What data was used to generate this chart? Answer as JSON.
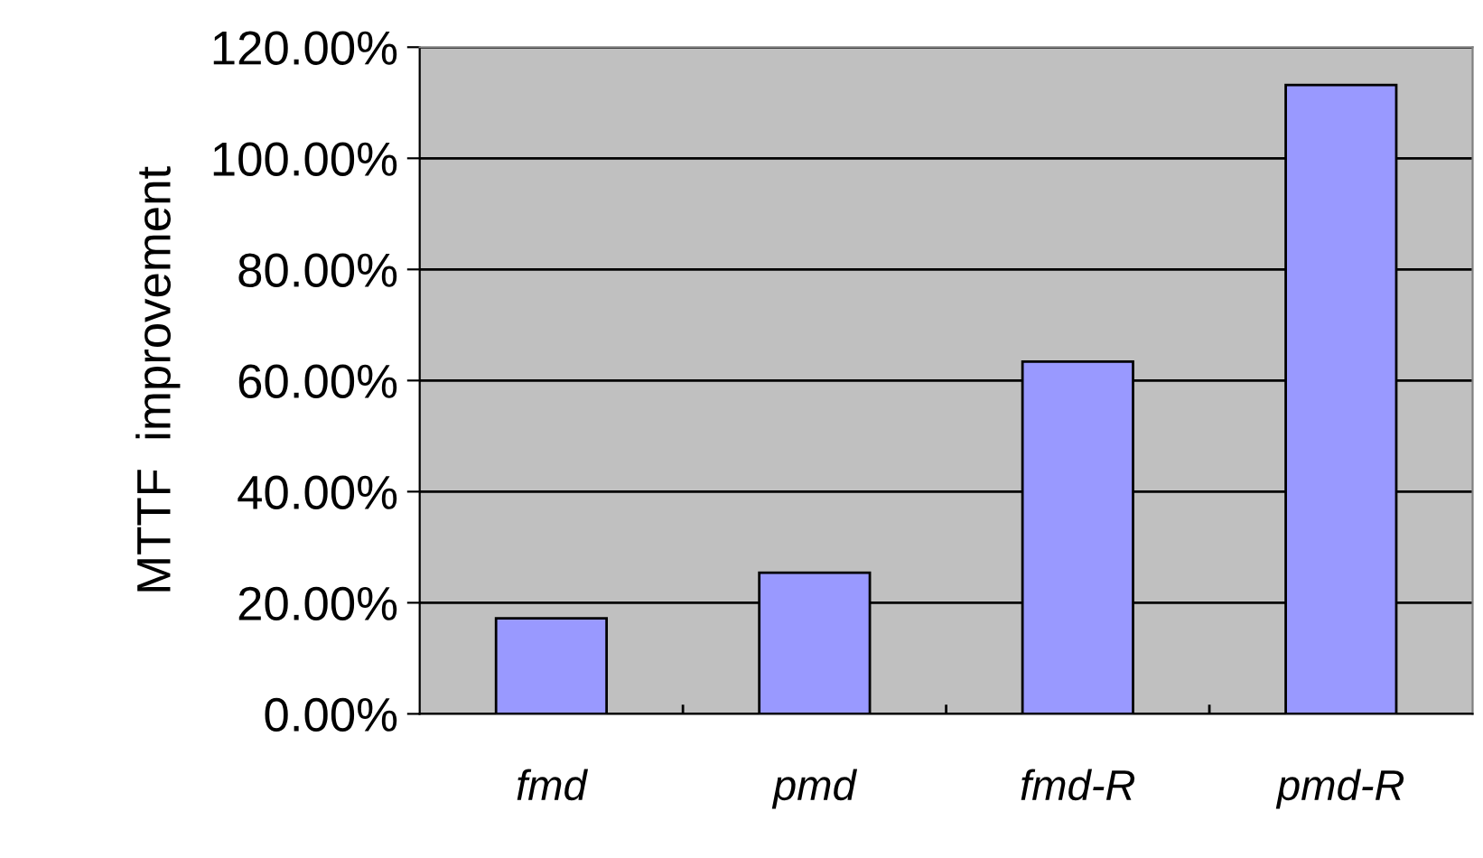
{
  "chart_data": {
    "type": "bar",
    "ylabel": "MTTF  improvement",
    "categories": [
      "fmd",
      "pmd",
      "fmd-R",
      "pmd-R"
    ],
    "values": [
      17.2,
      25.4,
      63.4,
      113.2
    ],
    "color": "#9999ff",
    "ylim": [
      0,
      120
    ],
    "yticks": [
      {
        "value": 0,
        "label": "0.00%"
      },
      {
        "value": 20,
        "label": "20.00%"
      },
      {
        "value": 40,
        "label": "40.00%"
      },
      {
        "value": 60,
        "label": "60.00%"
      },
      {
        "value": 80,
        "label": "80.00%"
      },
      {
        "value": 100,
        "label": "100.00%"
      },
      {
        "value": 120,
        "label": "120.00%"
      }
    ],
    "grid": "y",
    "legend": false
  }
}
